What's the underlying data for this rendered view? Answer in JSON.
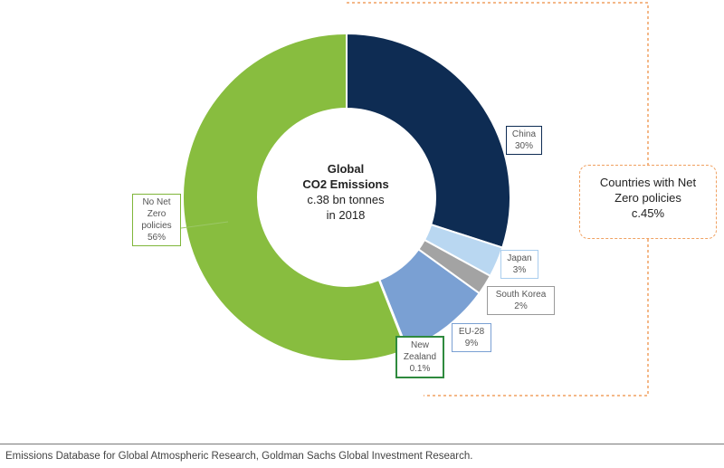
{
  "chart_data": {
    "type": "pie",
    "style": "donut",
    "center_text": {
      "title_line1": "Global",
      "title_line2": "CO2 Emissions",
      "line3": "c.38 bn tonnes",
      "line4": "in 2018"
    },
    "slices": [
      {
        "name": "China",
        "value": 30,
        "display_name": [
          "China"
        ],
        "display_value": "30%",
        "color": "#0e2c53",
        "label_border": "#0e2c53"
      },
      {
        "name": "Japan",
        "value": 3,
        "display_name": [
          "Japan"
        ],
        "display_value": "3%",
        "color": "#b9d7f1",
        "label_border": "#a9cdee"
      },
      {
        "name": "South Korea",
        "value": 2,
        "display_name": [
          "South Korea"
        ],
        "display_value": "2%",
        "color": "#a3a3a3",
        "label_border": "#9a9a9a"
      },
      {
        "name": "EU-28",
        "value": 9,
        "display_name": [
          "EU-28"
        ],
        "display_value": "9%",
        "color": "#7aa0d3",
        "label_border": "#7aa0d3"
      },
      {
        "name": "New Zealand",
        "value": 0.1,
        "display_name": [
          "New",
          "Zealand"
        ],
        "display_value": "0.1%",
        "color": "#2f8a3e",
        "label_border": "#2f8a3e"
      },
      {
        "name": "No Net Zero policies",
        "value": 56,
        "display_name": [
          "No Net",
          "Zero",
          "policies"
        ],
        "display_value": "56%",
        "color": "#88bd3f",
        "label_border": "#7fb63a"
      }
    ],
    "callout": {
      "line1": "Countries with Net",
      "line2": "Zero policies",
      "line3": "c.45%",
      "border_color": "#f0a060"
    }
  },
  "source": "Emissions Database for Global Atmospheric Research, Goldman Sachs Global Investment Research."
}
